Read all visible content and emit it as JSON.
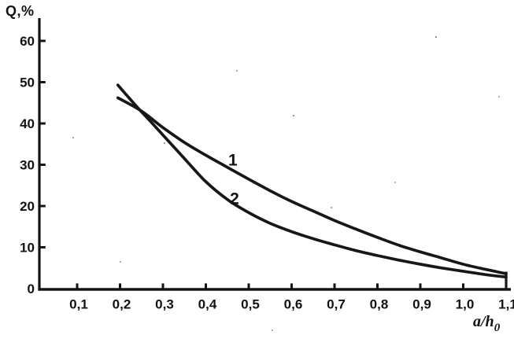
{
  "figure": {
    "ylabel": "Q,%",
    "xlabel_main": "a/h",
    "xlabel_sub": "0"
  },
  "chart_data": {
    "type": "line",
    "title": "",
    "ylabel": "Q,%",
    "xlabel": "a/h0",
    "xlim": [
      0,
      1.11
    ],
    "ylim": [
      0,
      65
    ],
    "grid": false,
    "legend_position": "none",
    "background_color": "#ffffff",
    "ink_color": "#171717",
    "x_ticks": [
      {
        "v": 0.1,
        "label": "0,1"
      },
      {
        "v": 0.2,
        "label": "0,2"
      },
      {
        "v": 0.3,
        "label": "0,3"
      },
      {
        "v": 0.4,
        "label": "0,4"
      },
      {
        "v": 0.5,
        "label": "0,5"
      },
      {
        "v": 0.6,
        "label": "0,6"
      },
      {
        "v": 0.7,
        "label": "0,7"
      },
      {
        "v": 0.8,
        "label": "0,8"
      },
      {
        "v": 0.9,
        "label": "0,9"
      },
      {
        "v": 1.0,
        "label": "1,0"
      },
      {
        "v": 1.1,
        "label": "1,1"
      }
    ],
    "y_ticks": [
      {
        "v": 0,
        "label": "0"
      },
      {
        "v": 10,
        "label": "10"
      },
      {
        "v": 20,
        "label": "20"
      },
      {
        "v": 30,
        "label": "30"
      },
      {
        "v": 40,
        "label": "40"
      },
      {
        "v": 50,
        "label": "50"
      },
      {
        "v": 60,
        "label": "60"
      }
    ],
    "series": [
      {
        "name": "1",
        "label": "1",
        "label_anchor": {
          "x": 0.463,
          "y": 31.2
        },
        "points": [
          [
            0.195,
            46.2
          ],
          [
            0.25,
            43.0
          ],
          [
            0.3,
            39.0
          ],
          [
            0.35,
            35.4
          ],
          [
            0.4,
            32.3
          ],
          [
            0.45,
            29.4
          ],
          [
            0.5,
            26.5
          ],
          [
            0.55,
            23.7
          ],
          [
            0.6,
            21.1
          ],
          [
            0.65,
            18.8
          ],
          [
            0.7,
            16.5
          ],
          [
            0.75,
            14.4
          ],
          [
            0.8,
            12.4
          ],
          [
            0.85,
            10.5
          ],
          [
            0.9,
            8.9
          ],
          [
            0.95,
            7.4
          ],
          [
            1.0,
            5.9
          ],
          [
            1.05,
            4.7
          ],
          [
            1.1,
            3.6
          ]
        ]
      },
      {
        "name": "2",
        "label": "2",
        "label_anchor": {
          "x": 0.467,
          "y": 21.9
        },
        "points": [
          [
            0.195,
            49.3
          ],
          [
            0.22,
            46.3
          ],
          [
            0.245,
            43.4
          ],
          [
            0.27,
            40.6
          ],
          [
            0.3,
            37.2
          ],
          [
            0.35,
            31.5
          ],
          [
            0.4,
            25.9
          ],
          [
            0.45,
            21.6
          ],
          [
            0.5,
            18.4
          ],
          [
            0.55,
            15.8
          ],
          [
            0.6,
            13.8
          ],
          [
            0.65,
            12.1
          ],
          [
            0.7,
            10.6
          ],
          [
            0.75,
            9.2
          ],
          [
            0.8,
            8.0
          ],
          [
            0.85,
            6.9
          ],
          [
            0.9,
            5.9
          ],
          [
            0.95,
            5.0
          ],
          [
            1.0,
            4.2
          ],
          [
            1.05,
            3.4
          ],
          [
            1.1,
            2.8
          ]
        ]
      }
    ],
    "right_edge_line": {
      "x": 1.1,
      "from": 0,
      "to": 4.1
    }
  }
}
